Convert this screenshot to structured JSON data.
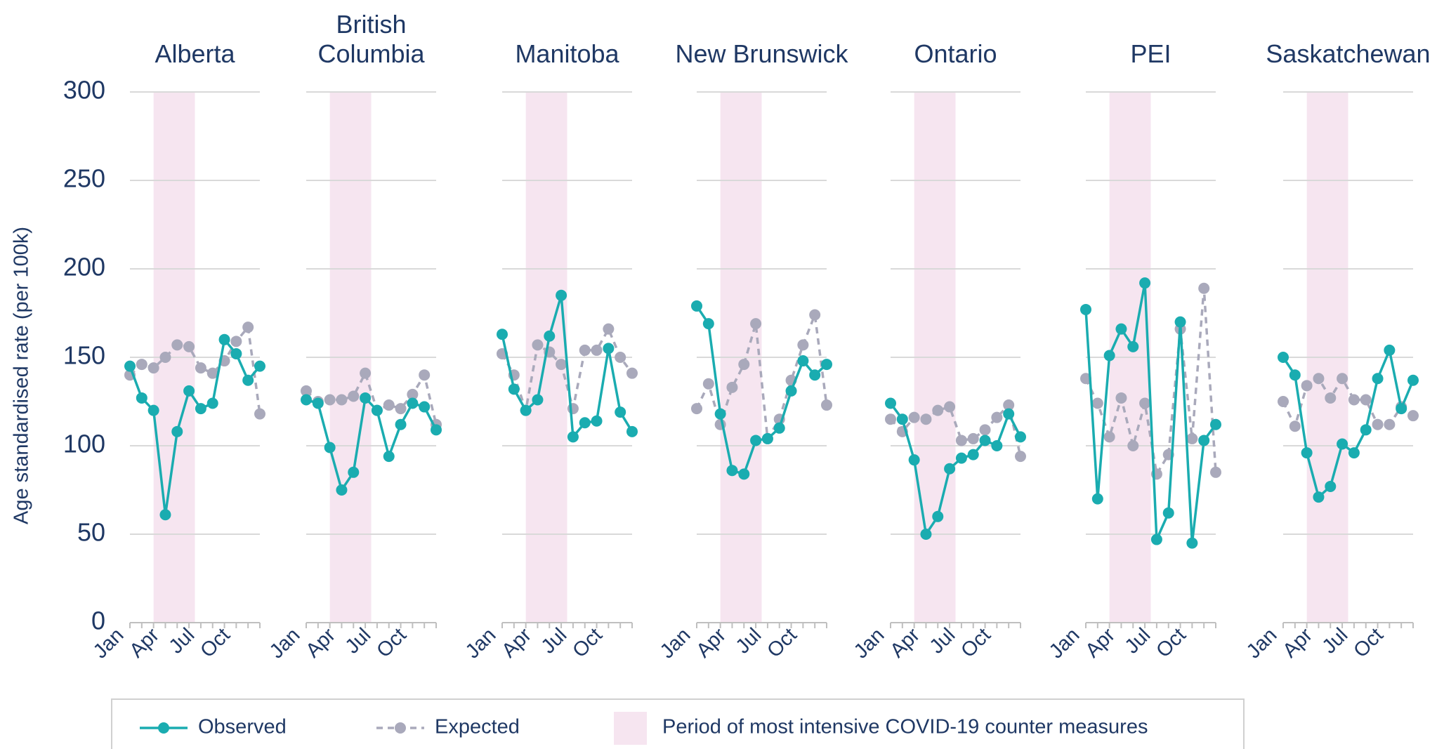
{
  "chart_data": {
    "type": "line",
    "ylabel": "Age standardised rate (per 100k)",
    "ylim": [
      0,
      300
    ],
    "yticks": [
      0,
      50,
      100,
      150,
      200,
      250,
      300
    ],
    "grid": true,
    "categories": [
      "Jan",
      null,
      null,
      "Apr",
      null,
      null,
      "Jul",
      null,
      null,
      "Oct",
      null,
      null
    ],
    "series": [
      {
        "name": "Observed",
        "color": "#1aacb0",
        "dash": false
      },
      {
        "name": "Expected",
        "color": "#a9a9bb",
        "dash": true
      }
    ],
    "shade": {
      "label": "Period of most intensive COVID-19 counter measures",
      "from": "Apr",
      "to": "Jul",
      "color": "#f6e5f0"
    },
    "panels": [
      {
        "title": "Alberta",
        "values": [
          [
            145,
            127,
            120,
            61,
            108,
            131,
            121,
            124,
            160,
            152,
            137,
            145
          ],
          [
            140,
            146,
            144,
            150,
            157,
            156,
            144,
            141,
            148,
            159,
            167,
            118
          ]
        ]
      },
      {
        "title": "British Columbia",
        "values": [
          [
            126,
            124,
            99,
            75,
            85,
            127,
            120,
            94,
            112,
            124,
            122,
            109
          ],
          [
            131,
            125,
            126,
            126,
            128,
            141,
            120,
            123,
            121,
            129,
            140,
            112
          ]
        ]
      },
      {
        "title": "Manitoba",
        "values": [
          [
            163,
            132,
            120,
            126,
            162,
            185,
            105,
            113,
            114,
            155,
            119,
            108
          ],
          [
            152,
            140,
            120,
            157,
            153,
            146,
            121,
            154,
            154,
            166,
            150,
            141
          ]
        ]
      },
      {
        "title": "New Brunswick",
        "values": [
          [
            179,
            169,
            118,
            86,
            84,
            103,
            104,
            110,
            131,
            148,
            140,
            146
          ],
          [
            121,
            135,
            112,
            133,
            146,
            169,
            104,
            115,
            137,
            157,
            174,
            123
          ]
        ]
      },
      {
        "title": "Ontario",
        "values": [
          [
            124,
            115,
            92,
            50,
            60,
            87,
            93,
            95,
            103,
            100,
            118,
            105
          ],
          [
            115,
            108,
            116,
            115,
            120,
            122,
            103,
            104,
            109,
            116,
            123,
            94
          ]
        ]
      },
      {
        "title": "PEI",
        "values": [
          [
            177,
            70,
            151,
            166,
            156,
            192,
            47,
            62,
            170,
            45,
            103,
            112
          ],
          [
            138,
            124,
            105,
            127,
            100,
            124,
            84,
            95,
            166,
            104,
            189,
            85
          ]
        ]
      },
      {
        "title": "Saskatchewan",
        "values": [
          [
            150,
            140,
            96,
            71,
            77,
            101,
            96,
            109,
            138,
            154,
            121,
            137
          ],
          [
            125,
            111,
            134,
            138,
            127,
            138,
            126,
            126,
            112,
            112,
            122,
            117
          ]
        ]
      }
    ]
  }
}
